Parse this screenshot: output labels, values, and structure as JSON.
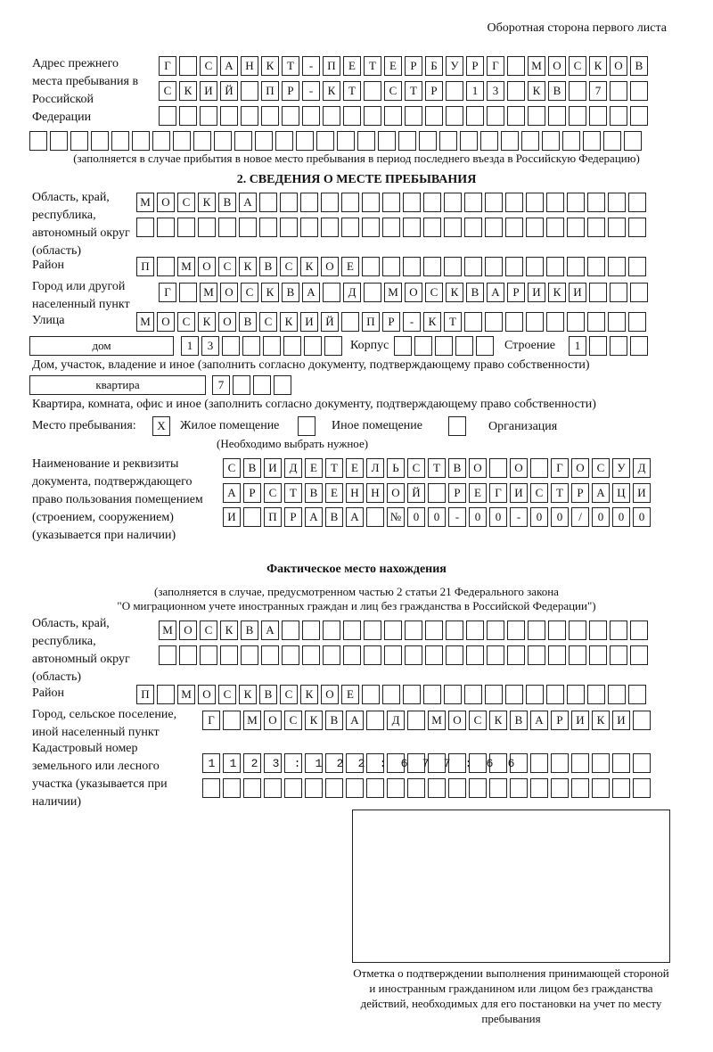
{
  "header": {
    "title": "Оборотная сторона первого листа"
  },
  "previous_address": {
    "label": "Адрес прежнего места пребывания в Российской Федерации",
    "rows": [
      "Г САНКТ-ПЕТЕРБУРГ МОСКОВ",
      "СКИЙ ПР-КТ СТР 13 КВ 7  ",
      "                        ",
      "                              "
    ],
    "note": "(заполняется в случае прибытия в новое место пребывания в период последнего въезда в Российскую Федерацию)"
  },
  "section2": {
    "title": "2. СВЕДЕНИЯ О МЕСТЕ ПРЕБЫВАНИЯ",
    "region_label": "Область, край, республика, автономный округ (область)",
    "region_rows": [
      "МОСКВА                   ",
      "                         "
    ],
    "district_label": "Район",
    "district": "П МОСКВСКОЕ              ",
    "city_label": "Город или другой населенный пункт",
    "city": "Г МОСКВА Д МОСКВАРИКИ   ",
    "street_label": "Улица",
    "street": "МОСКОВСКИЙ ПР-КТ         ",
    "house_type": "дом",
    "house": "13      ",
    "korpus_label": "Корпус",
    "korpus": "     ",
    "building_label": "Строение",
    "building": "1   ",
    "house_note": "Дом, участок, владение и иное (заполнить согласно документу, подтверждающему право собственности)",
    "apt_type": "квартира",
    "apt": "7   ",
    "apt_note": "Квартира, комната, офис и иное (заполнить согласно документу, подтверждающему право собственности)",
    "place_label": "Место пребывания:",
    "place_options": [
      {
        "label": "Жилое помещение",
        "mark": "Х"
      },
      {
        "label": "Иное помещение",
        "mark": ""
      },
      {
        "label": "Организация",
        "mark": ""
      }
    ],
    "place_note": "(Необходимо выбрать нужное)",
    "doc_label": "Наименование и реквизиты документа, подтверждающего право пользования помещением (строением, сооружением) (указывается при наличии)",
    "doc_rows": [
      "СВИДЕТЕЛЬСТВО О ГОСУД",
      "АРСТВЕННОЙ РЕГИСТРАЦИ",
      "И ПРАВА №00-00-00/000"
    ]
  },
  "actual": {
    "title": "Фактическое место нахождения",
    "note1": "(заполняется в случае, предусмотренном частью 2 статьи 21 Федерального закона",
    "note2": "\"О миграционном учете иностранных граждан и лиц без гражданства в Российской Федерации\")",
    "region_label": "Область, край, республика, автономный округ (область)",
    "region_rows": [
      "МОСКВА                  ",
      "                        "
    ],
    "district_label": "Район",
    "district": "П МОСКВСКОЕ              ",
    "city_label": "Город, сельское поселение, иной населенный пункт",
    "city": "Г МОСКВА Д МОСКВАРИКИ ",
    "cadastral_label": "Кадастровый номер земельного или лесного участка (указывается при наличии)",
    "cadastral_rows": [
      "1123:122:677:66       ",
      "                      "
    ]
  },
  "stamp": {
    "caption": "Отметка о подтверждении выполнения принимающей стороной и иностранным гражданином или лицом без гражданства действий, необходимых для его постановки на учет по месту пребывания"
  }
}
